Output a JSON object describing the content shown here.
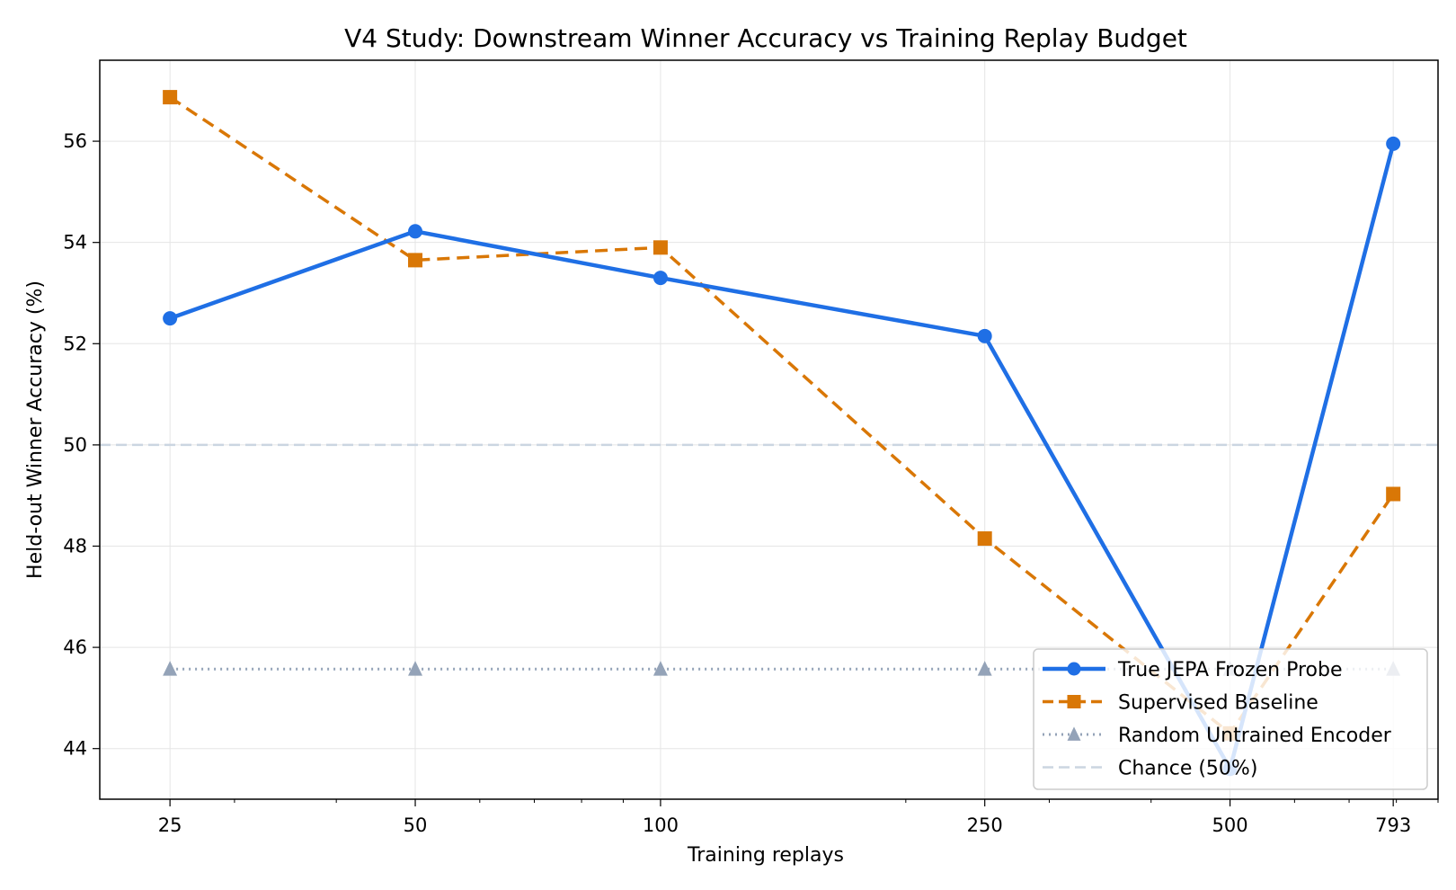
{
  "chart_data": {
    "type": "line",
    "title": "V4 Study: Downstream Winner Accuracy vs Training Replay Budget",
    "xlabel": "Training replays",
    "ylabel": "Held-out Winner Accuracy (%)",
    "x_scale": "log",
    "x": [
      25,
      50,
      100,
      250,
      500,
      793
    ],
    "x_tick_labels": [
      "25",
      "50",
      "100",
      "250",
      "500",
      "793"
    ],
    "xlim": [
      20.5,
      900
    ],
    "ylim": [
      43,
      57.6
    ],
    "y_ticks": [
      44,
      46,
      48,
      50,
      52,
      54,
      56
    ],
    "grid": true,
    "legend_position": "lower-right",
    "series": [
      {
        "name": "True JEPA Frozen Probe",
        "values": [
          52.5,
          54.22,
          53.3,
          52.15,
          43.6,
          55.95
        ],
        "color": "#1f6fe5",
        "line_style": "solid",
        "marker": "circle"
      },
      {
        "name": "Supervised Baseline",
        "values": [
          56.87,
          53.65,
          53.9,
          48.15,
          44.3,
          49.03
        ],
        "color": "#d97706",
        "line_style": "dashed",
        "marker": "square"
      },
      {
        "name": "Random Untrained Encoder",
        "values": [
          45.57,
          45.57,
          45.57,
          45.57,
          45.57,
          45.57
        ],
        "color": "#94a3b8",
        "line_style": "dotted",
        "marker": "triangle"
      }
    ],
    "reference_lines": [
      {
        "name": "Chance (50%)",
        "y": 50,
        "color": "#cbd5e1",
        "line_style": "dashed"
      }
    ]
  }
}
